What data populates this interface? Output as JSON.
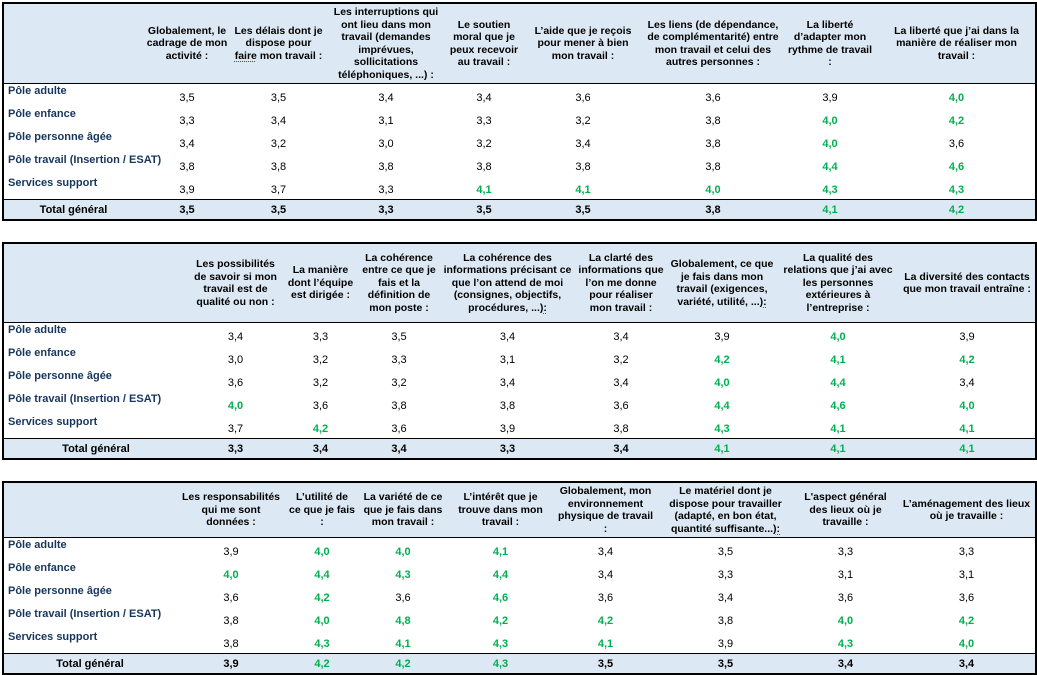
{
  "colors": {
    "header_bg": "#DCE8F3",
    "good_green": "#00B050",
    "row_label_blue": "#17365D",
    "border_black": "#000000"
  },
  "green_threshold": 4,
  "total_label": "Total général",
  "row_labels": [
    "Pôle adulte",
    "Pôle enfance",
    "Pôle personne âgée",
    "Pôle travail (Insertion / ESAT)",
    "Services support"
  ],
  "tables": [
    {
      "name": "cadrage-et-liberte",
      "headers": [
        {
          "text": "Globalement, le cadrage de mon activité :"
        },
        {
          "text": "Les délais dont je dispose pour faire mon travail :",
          "mark": "faire"
        },
        {
          "text": "Les interruptions qui ont lieu dans mon travail (demandes imprévues, sollicitations téléphoniques, ...) :"
        },
        {
          "text": "Le soutien moral que je peux recevoir au travail :"
        },
        {
          "text": "L’aide que je reçois pour mener à bien mon travail :"
        },
        {
          "text": "Les liens (de dépendance, de complémentarité) entre mon travail et celui des autres personnes :"
        },
        {
          "text": "La liberté d’adapter mon rythme de travail :"
        },
        {
          "text": "La liberté que j’ai dans la manière de réaliser mon travail :"
        }
      ],
      "rows": [
        {
          "label": "Pôle adulte",
          "values": [
            "3,5",
            "3,5",
            "3,4",
            "3,4",
            "3,6",
            "3,6",
            "3,9",
            "4,0"
          ]
        },
        {
          "label": "Pôle enfance",
          "values": [
            "3,3",
            "3,4",
            "3,1",
            "3,3",
            "3,2",
            "3,8",
            "4,0",
            "4,2"
          ]
        },
        {
          "label": "Pôle personne âgée",
          "values": [
            "3,4",
            "3,2",
            "3,0",
            "3,2",
            "3,4",
            "3,8",
            "4,0",
            "3,6"
          ]
        },
        {
          "label": "Pôle travail (Insertion / ESAT)",
          "values": [
            "3,8",
            "3,8",
            "3,8",
            "3,8",
            "3,8",
            "3,8",
            "4,4",
            "4,6"
          ]
        },
        {
          "label": "Services support",
          "values": [
            "3,9",
            "3,7",
            "3,3",
            "4,1",
            "4,1",
            "4,0",
            "4,3",
            "4,3"
          ]
        }
      ],
      "total": [
        "3,5",
        "3,5",
        "3,3",
        "3,5",
        "3,5",
        "3,8",
        "4,1",
        "4,2"
      ]
    },
    {
      "name": "coherence-et-relations",
      "headers": [
        {
          "text": "Les possibilités de savoir si mon travail est de qualité ou non :"
        },
        {
          "text": "La manière dont l’équipe est dirigée :"
        },
        {
          "text": "La cohérence entre ce que je fais et la définition de mon poste :"
        },
        {
          "text": "La cohérence des informations précisant ce que l’on attend de moi (consignes, objectifs, procédures, ...):",
          "mark": "):"
        },
        {
          "text": "La clarté des informations que l’on me donne pour réaliser mon travail :"
        },
        {
          "text": "Globalement, ce que je fais dans mon travail (exigences, variété, utilité, ...):",
          "mark": "):"
        },
        {
          "text": "La qualité des relations que j’ai avec les personnes extérieures à l’entreprise :"
        },
        {
          "text": "La diversité des contacts que mon travail entraîne :"
        }
      ],
      "rows": [
        {
          "label": "Pôle adulte",
          "values": [
            "3,4",
            "3,3",
            "3,5",
            "3,4",
            "3,4",
            "3,9",
            "4,0",
            "3,9"
          ]
        },
        {
          "label": "Pôle enfance",
          "values": [
            "3,0",
            "3,2",
            "3,3",
            "3,1",
            "3,2",
            "4,2",
            "4,1",
            "4,2"
          ]
        },
        {
          "label": "Pôle personne âgée",
          "values": [
            "3,6",
            "3,2",
            "3,2",
            "3,4",
            "3,4",
            "4,0",
            "4,4",
            "3,4"
          ]
        },
        {
          "label": "Pôle travail (Insertion / ESAT)",
          "values": [
            "4,0",
            "3,6",
            "3,8",
            "3,8",
            "3,6",
            "4,4",
            "4,6",
            "4,0"
          ]
        },
        {
          "label": "Services support",
          "values": [
            "3,7",
            "4,2",
            "3,6",
            "3,9",
            "3,8",
            "4,3",
            "4,1",
            "4,1"
          ]
        }
      ],
      "total": [
        "3,3",
        "3,4",
        "3,4",
        "3,3",
        "3,4",
        "4,1",
        "4,1",
        "4,1"
      ]
    },
    {
      "name": "interet-et-environnement",
      "headers": [
        {
          "text": "Les responsabilités qui me sont données :"
        },
        {
          "text": "L’utilité de ce que je fais :"
        },
        {
          "text": "La variété de ce que je fais dans mon travail :"
        },
        {
          "text": "L’intérêt que je trouve dans mon travail :"
        },
        {
          "text": "Globalement, mon environnement physique de travail :"
        },
        {
          "text": "Le matériel dont je dispose pour travailler (adapté, en bon état, quantité suffisante...):",
          "mark": "):"
        },
        {
          "text": "L'aspect général des lieux où je travaille :"
        },
        {
          "text": "L’aménagement des lieux où je travaille :"
        }
      ],
      "rows": [
        {
          "label": "Pôle adulte",
          "values": [
            "3,9",
            "4,0",
            "4,0",
            "4,1",
            "3,4",
            "3,5",
            "3,3",
            "3,3"
          ]
        },
        {
          "label": "Pôle enfance",
          "values": [
            "4,0",
            "4,4",
            "4,3",
            "4,4",
            "3,4",
            "3,3",
            "3,1",
            "3,1"
          ]
        },
        {
          "label": "Pôle personne âgée",
          "values": [
            "3,6",
            "4,2",
            "3,6",
            "4,6",
            "3,6",
            "3,4",
            "3,6",
            "3,6"
          ]
        },
        {
          "label": "Pôle travail (Insertion / ESAT)",
          "values": [
            "3,8",
            "4,0",
            "4,8",
            "4,2",
            "4,2",
            "3,8",
            "4,0",
            "4,2"
          ]
        },
        {
          "label": "Services support",
          "values": [
            "3,8",
            "4,3",
            "4,1",
            "4,3",
            "4,1",
            "3,9",
            "4,3",
            "4,0"
          ]
        }
      ],
      "total": [
        "3,9",
        "4,2",
        "4,2",
        "4,3",
        "3,5",
        "3,5",
        "3,4",
        "3,4"
      ]
    }
  ]
}
